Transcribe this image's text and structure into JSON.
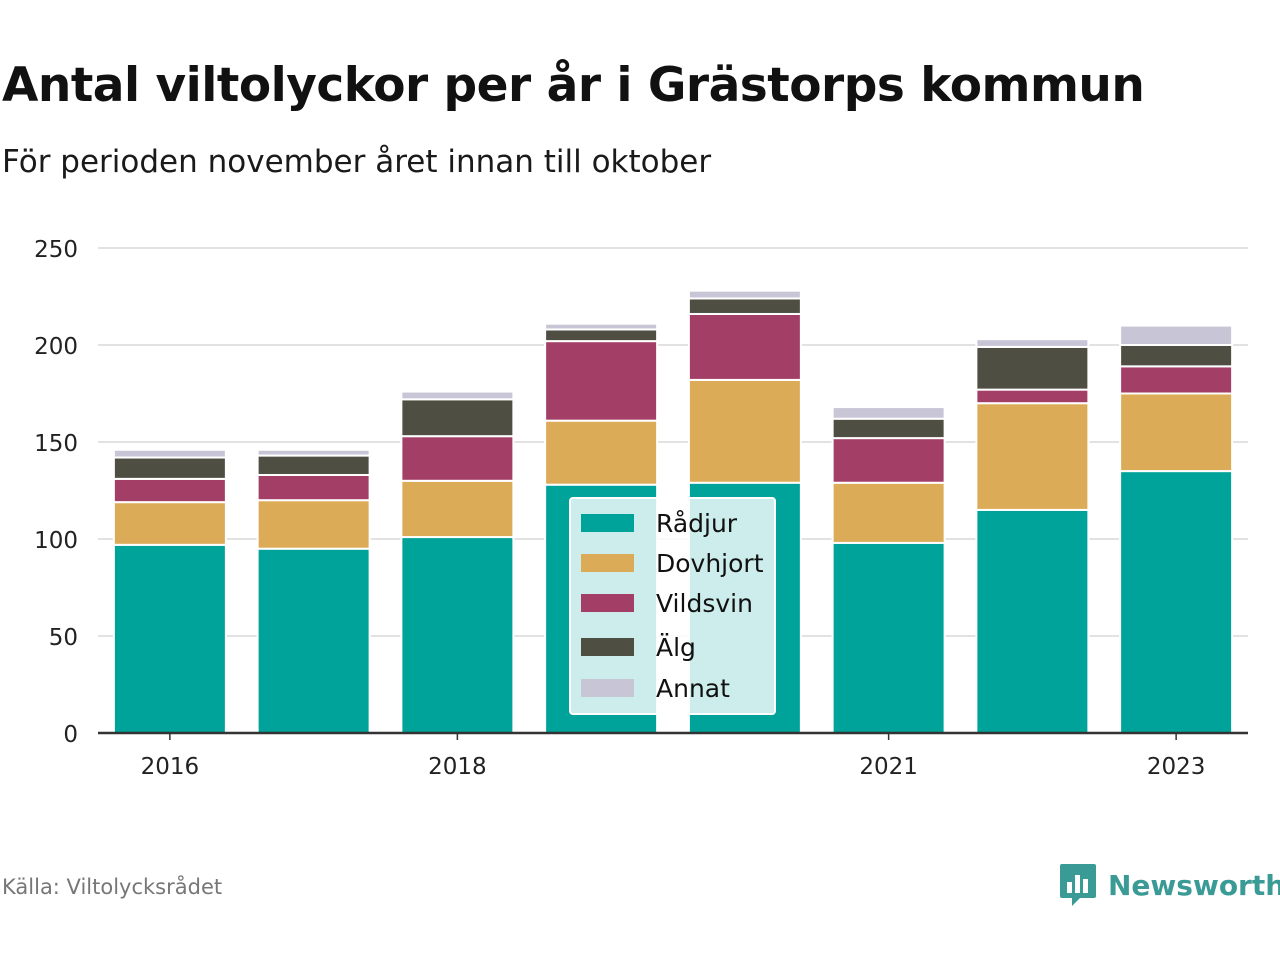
{
  "title": "Antal viltolyckor per år i Grästorps kommun",
  "subtitle": "För perioden november året innan till oktober",
  "source": "Källa: Viltolycksrådet",
  "brand": {
    "name": "Newsworthy",
    "icon": "bar-chart-speech-bubble-icon",
    "color": "#3a9a96"
  },
  "chart_data": {
    "type": "bar",
    "stacked": true,
    "x": [
      2016,
      2017,
      2018,
      2019,
      2020,
      2021,
      2022,
      2023
    ],
    "x_tick_labels": [
      "2016",
      "",
      "2018",
      "",
      "",
      "2021",
      "",
      "2023"
    ],
    "y_ticks": [
      "0",
      "50",
      "100",
      "150",
      "200",
      "250"
    ],
    "ylim": [
      0,
      250
    ],
    "grid": true,
    "legend_position": "center",
    "series": [
      {
        "name": "Rådjur",
        "color": "#00a39a",
        "values": [
          97,
          95,
          101,
          128,
          129,
          98,
          115,
          135
        ]
      },
      {
        "name": "Dovhjort",
        "color": "#dbab57",
        "values": [
          22,
          25,
          29,
          33,
          53,
          31,
          55,
          40
        ]
      },
      {
        "name": "Vildsvin",
        "color": "#a33f66",
        "values": [
          12,
          13,
          23,
          41,
          34,
          23,
          7,
          14
        ]
      },
      {
        "name": "Älg",
        "color": "#4e4e42",
        "values": [
          11,
          10,
          19,
          6,
          8,
          10,
          22,
          11
        ]
      },
      {
        "name": "Annat",
        "color": "#c8c6d6",
        "values": [
          4,
          3,
          4,
          3,
          4,
          6,
          4,
          10
        ]
      }
    ]
  }
}
